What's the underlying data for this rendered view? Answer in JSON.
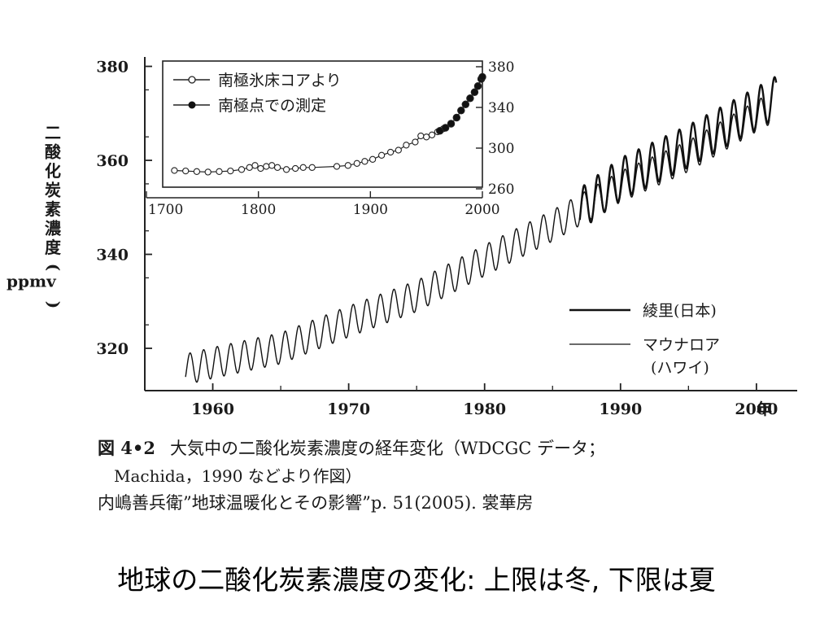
{
  "slide_title": "地球の二酸化炭素濃度の変化: 上限は冬, 下限は夏",
  "caption": {
    "figure_number": "図 4•2",
    "line1": "大気中の二酸化炭素濃度の経年変化（WDCGC データ；",
    "line2": "Machida，1990 などより作図）",
    "source": "内嶋善兵衛”地球温暖化とその影響”p. 51(2005). 裳華房"
  },
  "chart_data": [
    {
      "type": "line",
      "title": "",
      "ylabel": "二酸化炭素濃度(ppmv)",
      "ylabel_chars": [
        "二",
        "酸",
        "化",
        "炭",
        "素",
        "濃",
        "度",
        "(",
        "ppmv",
        ")"
      ],
      "x_unit_label": "年",
      "xlim": [
        1955,
        2003
      ],
      "ylim": [
        311,
        382
      ],
      "x_ticks": [
        1960,
        1970,
        1980,
        1990,
        2000
      ],
      "y_ticks": [
        320,
        340,
        360,
        380
      ],
      "legend": {
        "placement": "lower-right",
        "entries": [
          "綾里(日本)",
          "マウナロア",
          "(ハワイ)"
        ]
      },
      "series": [
        {
          "name": "マウナロア(ハワイ)",
          "trend": [
            [
              1958,
              315.5
            ],
            [
              1960,
              316.9
            ],
            [
              1965,
              320.0
            ],
            [
              1970,
              325.7
            ],
            [
              1975,
              331.1
            ],
            [
              1980,
              338.7
            ],
            [
              1985,
              346.1
            ],
            [
              1990,
              354.4
            ],
            [
              1995,
              360.9
            ],
            [
              2000,
              369.4
            ],
            [
              2001,
              371.0
            ]
          ],
          "seasonal_amplitude": 3.3
        },
        {
          "name": "綾里(日本)",
          "trend": [
            [
              1987,
              349.5
            ],
            [
              1990,
              356.0
            ],
            [
              1995,
              363.0
            ],
            [
              2000,
              371.0
            ],
            [
              2001.5,
              373.5
            ]
          ],
          "seasonal_amplitude": 4.5
        }
      ]
    },
    {
      "type": "line",
      "title": "",
      "xlim": [
        1700,
        2000
      ],
      "ylim": [
        260,
        380
      ],
      "x_ticks": [
        1700,
        1800,
        1900,
        2000
      ],
      "y_ticks": [
        260,
        300,
        340,
        380
      ],
      "legend": {
        "placement": "top-left",
        "entries": [
          "南極氷床コアより",
          "南極点での測定"
        ]
      },
      "series": [
        {
          "name": "南極氷床コアより",
          "marker": "open-circle",
          "points": [
            [
              1725,
              278
            ],
            [
              1735,
              277.5
            ],
            [
              1745,
              277
            ],
            [
              1755,
              276.5
            ],
            [
              1765,
              277
            ],
            [
              1775,
              277.5
            ],
            [
              1785,
              279
            ],
            [
              1792,
              281
            ],
            [
              1797,
              283
            ],
            [
              1802,
              280
            ],
            [
              1807,
              282
            ],
            [
              1812,
              283
            ],
            [
              1817,
              281
            ],
            [
              1825,
              279
            ],
            [
              1833,
              280
            ],
            [
              1840,
              281
            ],
            [
              1848,
              281
            ],
            [
              1870,
              282
            ],
            [
              1880,
              283
            ],
            [
              1888,
              285
            ],
            [
              1895,
              287
            ],
            [
              1902,
              289
            ],
            [
              1910,
              293
            ],
            [
              1918,
              296
            ],
            [
              1925,
              298
            ],
            [
              1932,
              303
            ],
            [
              1940,
              306
            ],
            [
              1945,
              312
            ],
            [
              1950,
              311
            ],
            [
              1955,
              313
            ],
            [
              1960,
              316
            ],
            [
              1965,
              319
            ]
          ]
        },
        {
          "name": "南極点での測定",
          "marker": "filled-circle",
          "points": [
            [
              1962,
              317
            ],
            [
              1967,
              320
            ],
            [
              1972,
              324
            ],
            [
              1977,
              330
            ],
            [
              1981,
              337
            ],
            [
              1985,
              343
            ],
            [
              1989,
              349
            ],
            [
              1993,
              355
            ],
            [
              1996,
              361
            ],
            [
              1999,
              368
            ],
            [
              2000,
              370
            ]
          ]
        }
      ]
    }
  ]
}
